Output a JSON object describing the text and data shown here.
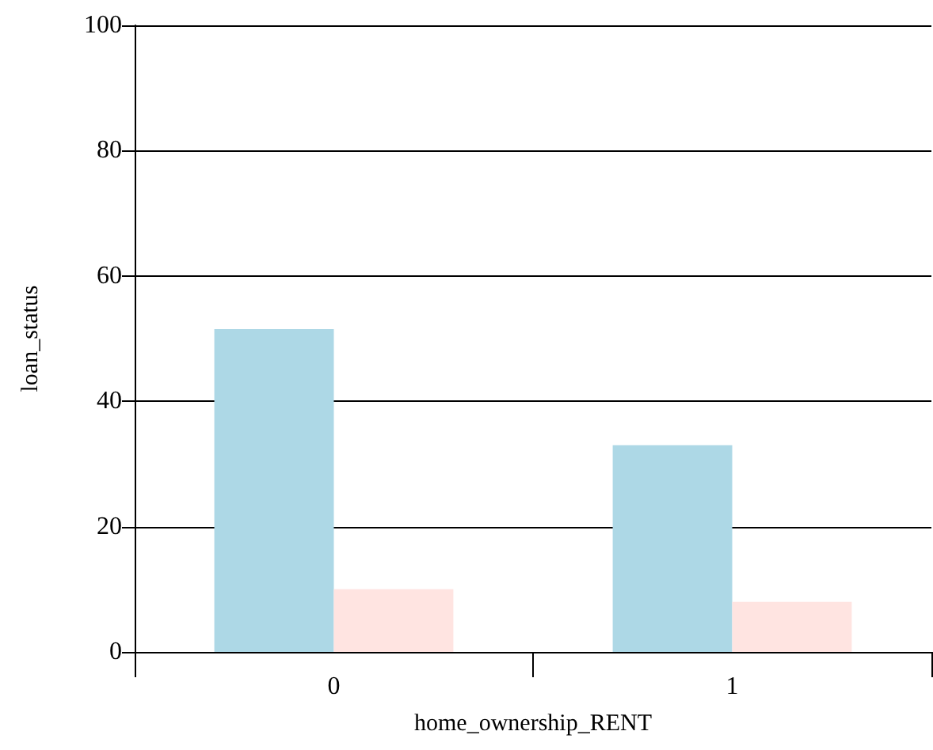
{
  "chart_data": {
    "type": "bar",
    "xlabel": "home_ownership_RENT",
    "ylabel": "loan_status",
    "categories": [
      "0",
      "1"
    ],
    "series": [
      {
        "color": "#add8e6",
        "values": [
          51.5,
          33
        ]
      },
      {
        "color": "#ffe4e1",
        "values": [
          10,
          8
        ]
      }
    ],
    "ylim": [
      0,
      100
    ],
    "yticks": [
      0,
      20,
      40,
      60,
      80,
      100
    ],
    "grid": "y"
  }
}
